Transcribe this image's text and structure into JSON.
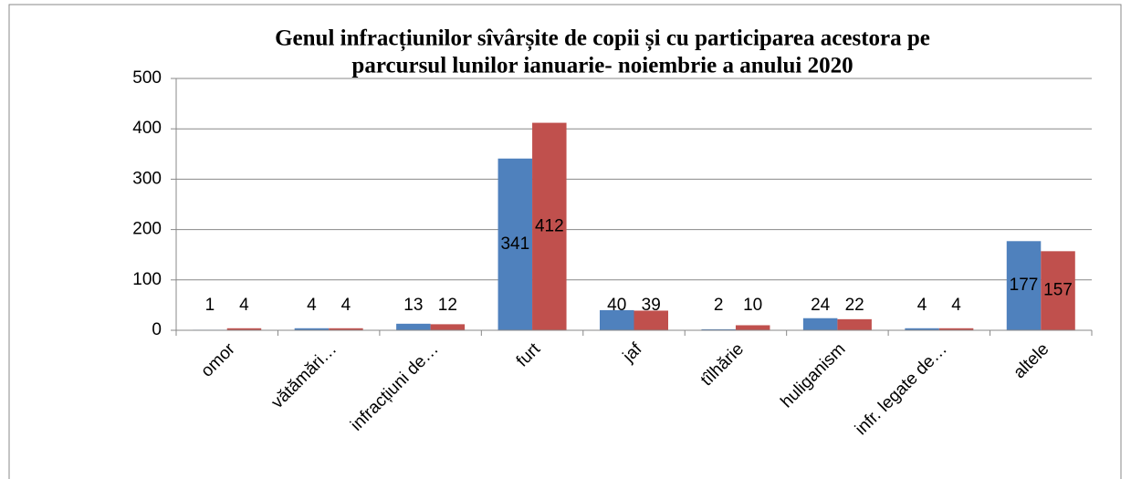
{
  "chart_data": {
    "type": "bar",
    "title": [
      "Genul infracțiunilor sîvârșite de copii și cu participarea acestora  pe",
      "parcursul  lunilor ianuarie- noiembrie a anului 2020"
    ],
    "categories": [
      "omor",
      "vătămări…",
      "infracțiuni de…",
      "furt",
      "jaf",
      "tîlhărie",
      "huliganism",
      "infr. legate de…",
      "altele"
    ],
    "series": [
      {
        "color": "#4f81bd",
        "values": [
          1,
          4,
          13,
          341,
          40,
          2,
          24,
          4,
          177
        ]
      },
      {
        "color": "#c0504d",
        "values": [
          4,
          4,
          12,
          412,
          39,
          10,
          22,
          4,
          157
        ]
      }
    ],
    "ylim": [
      0,
      500
    ],
    "yticks": [
      0,
      100,
      200,
      300,
      400,
      500
    ],
    "grid": true
  }
}
